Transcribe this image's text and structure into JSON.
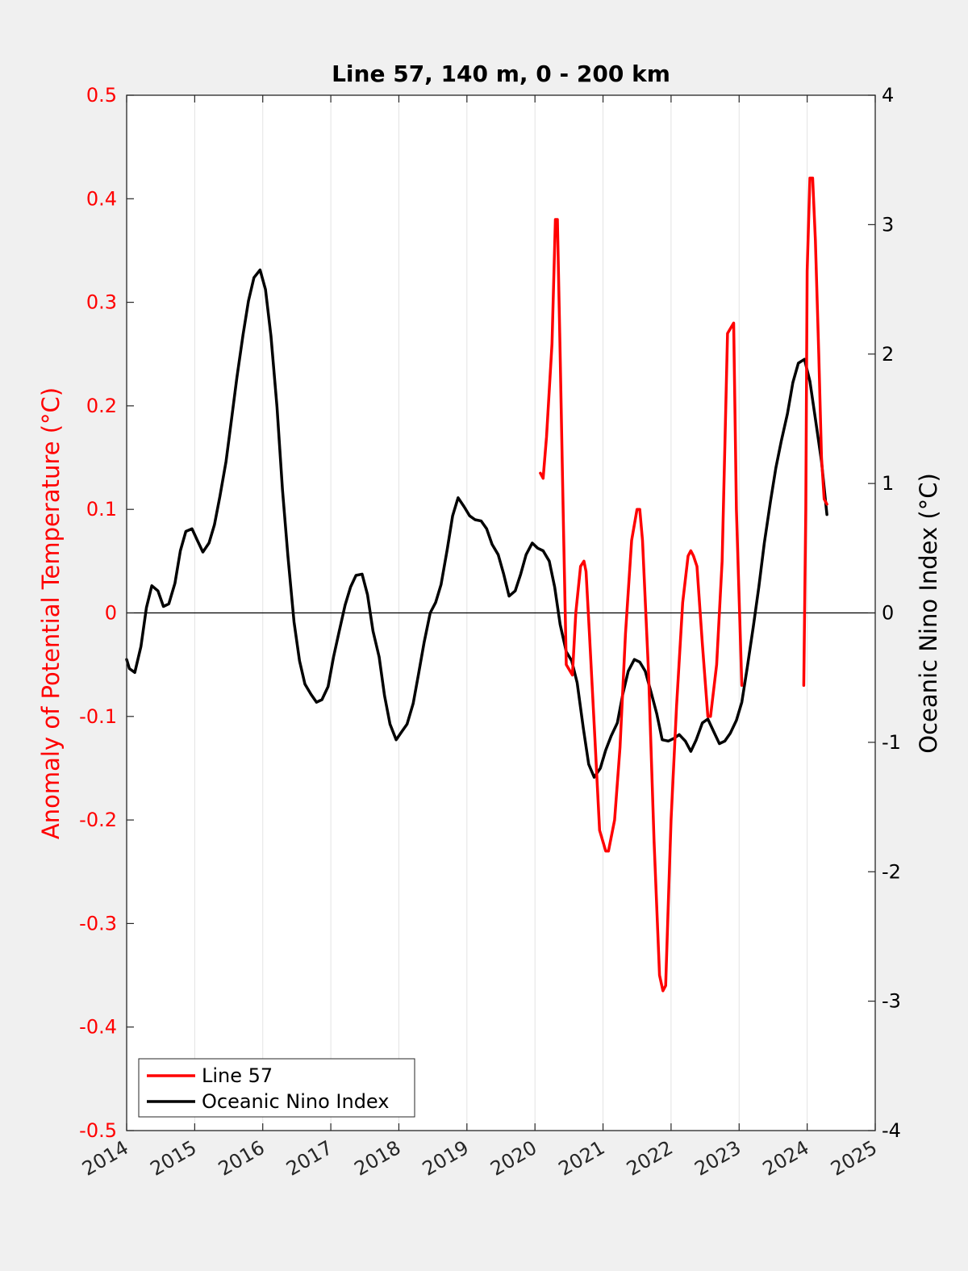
{
  "chart_data": {
    "type": "line",
    "title": "Line 57, 140 m, 0 - 200 km",
    "ylabel_left": "Anomaly of Potential Temperature (°C)",
    "ylabel_right": "Oceanic Nino Index (°C)",
    "xlim": [
      2014,
      2025
    ],
    "ylim_left": [
      -0.5,
      0.5
    ],
    "ylim_right": [
      -4,
      4
    ],
    "x_ticks": [
      "2014",
      "2015",
      "2016",
      "2017",
      "2018",
      "2019",
      "2020",
      "2021",
      "2022",
      "2023",
      "2024",
      "2025"
    ],
    "y_ticks_left": [
      "-0.5",
      "-0.4",
      "-0.3",
      "-0.2",
      "-0.1",
      "0",
      "0.1",
      "0.2",
      "0.3",
      "0.4",
      "0.5"
    ],
    "y_ticks_right": [
      "-4",
      "-3",
      "-2",
      "-1",
      "0",
      "1",
      "2",
      "3",
      "4"
    ],
    "grid": "vertical",
    "legend_placement": "bottom-left",
    "colors": {
      "line57": "#ff0000",
      "oni": "#000000",
      "left_axis": "#ff0000",
      "right_axis": "#000000"
    },
    "series": [
      {
        "name": "Line 57",
        "axis": "left",
        "x": [
          2020.08,
          2020.12,
          2020.17,
          2020.25,
          2020.3,
          2020.33,
          2020.37,
          2020.42,
          2020.46,
          2020.55,
          2020.6,
          2020.67,
          2020.72,
          2020.75,
          2020.8,
          2020.88,
          2020.95,
          2021.04,
          2021.08,
          2021.17,
          2021.25,
          2021.33,
          2021.42,
          2021.5,
          2021.54,
          2021.58,
          2021.67,
          2021.75,
          2021.83,
          2021.88,
          2021.92,
          2021.96,
          2022.0,
          2022.08,
          2022.17,
          2022.25,
          2022.29,
          2022.33,
          2022.38,
          2022.46,
          2022.54,
          2022.58,
          2022.67,
          2022.75,
          2022.83,
          2022.92,
          2022.96,
          2023.04,
          null,
          2023.95,
          2023.98,
          2024.0,
          2024.04,
          2024.08,
          2024.12,
          2024.17,
          2024.21,
          2024.25,
          2024.29
        ],
        "y": [
          0.135,
          0.13,
          0.17,
          0.26,
          0.38,
          0.38,
          0.25,
          0.08,
          -0.05,
          -0.06,
          0.0,
          0.045,
          0.05,
          0.04,
          -0.02,
          -0.12,
          -0.21,
          -0.23,
          -0.23,
          -0.2,
          -0.13,
          -0.02,
          0.07,
          0.1,
          0.1,
          0.07,
          -0.06,
          -0.22,
          -0.35,
          -0.365,
          -0.36,
          -0.28,
          -0.2,
          -0.09,
          0.01,
          0.055,
          0.06,
          0.055,
          0.045,
          -0.03,
          -0.1,
          -0.1,
          -0.05,
          0.05,
          0.27,
          0.28,
          0.1,
          -0.07,
          null,
          -0.07,
          0.1,
          0.33,
          0.42,
          0.42,
          0.36,
          0.25,
          0.15,
          0.11,
          0.105
        ]
      },
      {
        "name": "Oceanic Nino Index",
        "axis": "right",
        "x": [
          2014.0,
          2014.04,
          2014.12,
          2014.21,
          2014.29,
          2014.37,
          2014.46,
          2014.54,
          2014.62,
          2014.71,
          2014.79,
          2014.87,
          2014.96,
          2015.04,
          2015.12,
          2015.21,
          2015.29,
          2015.37,
          2015.46,
          2015.54,
          2015.62,
          2015.71,
          2015.79,
          2015.87,
          2015.96,
          2016.04,
          2016.12,
          2016.21,
          2016.29,
          2016.37,
          2016.46,
          2016.54,
          2016.62,
          2016.71,
          2016.79,
          2016.87,
          2016.96,
          2017.04,
          2017.12,
          2017.21,
          2017.29,
          2017.37,
          2017.46,
          2017.54,
          2017.62,
          2017.71,
          2017.79,
          2017.87,
          2017.96,
          2018.04,
          2018.12,
          2018.21,
          2018.29,
          2018.37,
          2018.46,
          2018.54,
          2018.62,
          2018.71,
          2018.79,
          2018.87,
          2018.96,
          2019.04,
          2019.12,
          2019.21,
          2019.29,
          2019.37,
          2019.46,
          2019.54,
          2019.62,
          2019.71,
          2019.79,
          2019.87,
          2019.96,
          2020.04,
          2020.12,
          2020.21,
          2020.29,
          2020.37,
          2020.46,
          2020.54,
          2020.62,
          2020.71,
          2020.79,
          2020.87,
          2020.96,
          2021.04,
          2021.12,
          2021.21,
          2021.29,
          2021.37,
          2021.46,
          2021.54,
          2021.62,
          2021.71,
          2021.79,
          2021.87,
          2021.96,
          2022.04,
          2022.12,
          2022.21,
          2022.29,
          2022.37,
          2022.46,
          2022.54,
          2022.62,
          2022.71,
          2022.79,
          2022.87,
          2022.96,
          2023.04,
          2023.12,
          2023.21,
          2023.29,
          2023.37,
          2023.46,
          2023.54,
          2023.62,
          2023.71,
          2023.79,
          2023.87,
          2023.96,
          2024.04,
          2024.12,
          2024.21,
          2024.29
        ],
        "y": [
          -0.36,
          -0.43,
          -0.46,
          -0.26,
          0.04,
          0.21,
          0.17,
          0.05,
          0.07,
          0.23,
          0.48,
          0.63,
          0.65,
          0.56,
          0.47,
          0.54,
          0.68,
          0.9,
          1.17,
          1.49,
          1.82,
          2.15,
          2.41,
          2.59,
          2.65,
          2.5,
          2.14,
          1.59,
          0.95,
          0.44,
          -0.07,
          -0.37,
          -0.55,
          -0.63,
          -0.69,
          -0.67,
          -0.57,
          -0.34,
          -0.15,
          0.06,
          0.2,
          0.29,
          0.3,
          0.14,
          -0.14,
          -0.34,
          -0.64,
          -0.86,
          -0.98,
          -0.92,
          -0.86,
          -0.7,
          -0.47,
          -0.23,
          0.0,
          0.08,
          0.22,
          0.49,
          0.75,
          0.89,
          0.82,
          0.75,
          0.72,
          0.71,
          0.65,
          0.53,
          0.45,
          0.3,
          0.13,
          0.17,
          0.3,
          0.45,
          0.54,
          0.5,
          0.48,
          0.4,
          0.2,
          -0.09,
          -0.3,
          -0.37,
          -0.54,
          -0.89,
          -1.17,
          -1.27,
          -1.2,
          -1.06,
          -0.95,
          -0.85,
          -0.63,
          -0.45,
          -0.36,
          -0.38,
          -0.45,
          -0.62,
          -0.78,
          -0.98,
          -0.99,
          -0.97,
          -0.94,
          -0.99,
          -1.07,
          -0.98,
          -0.85,
          -0.82,
          -0.91,
          -1.01,
          -0.99,
          -0.93,
          -0.83,
          -0.69,
          -0.42,
          -0.1,
          0.2,
          0.54,
          0.86,
          1.12,
          1.33,
          1.54,
          1.78,
          1.93,
          1.96,
          1.79,
          1.5,
          1.17,
          0.76
        ]
      }
    ]
  }
}
